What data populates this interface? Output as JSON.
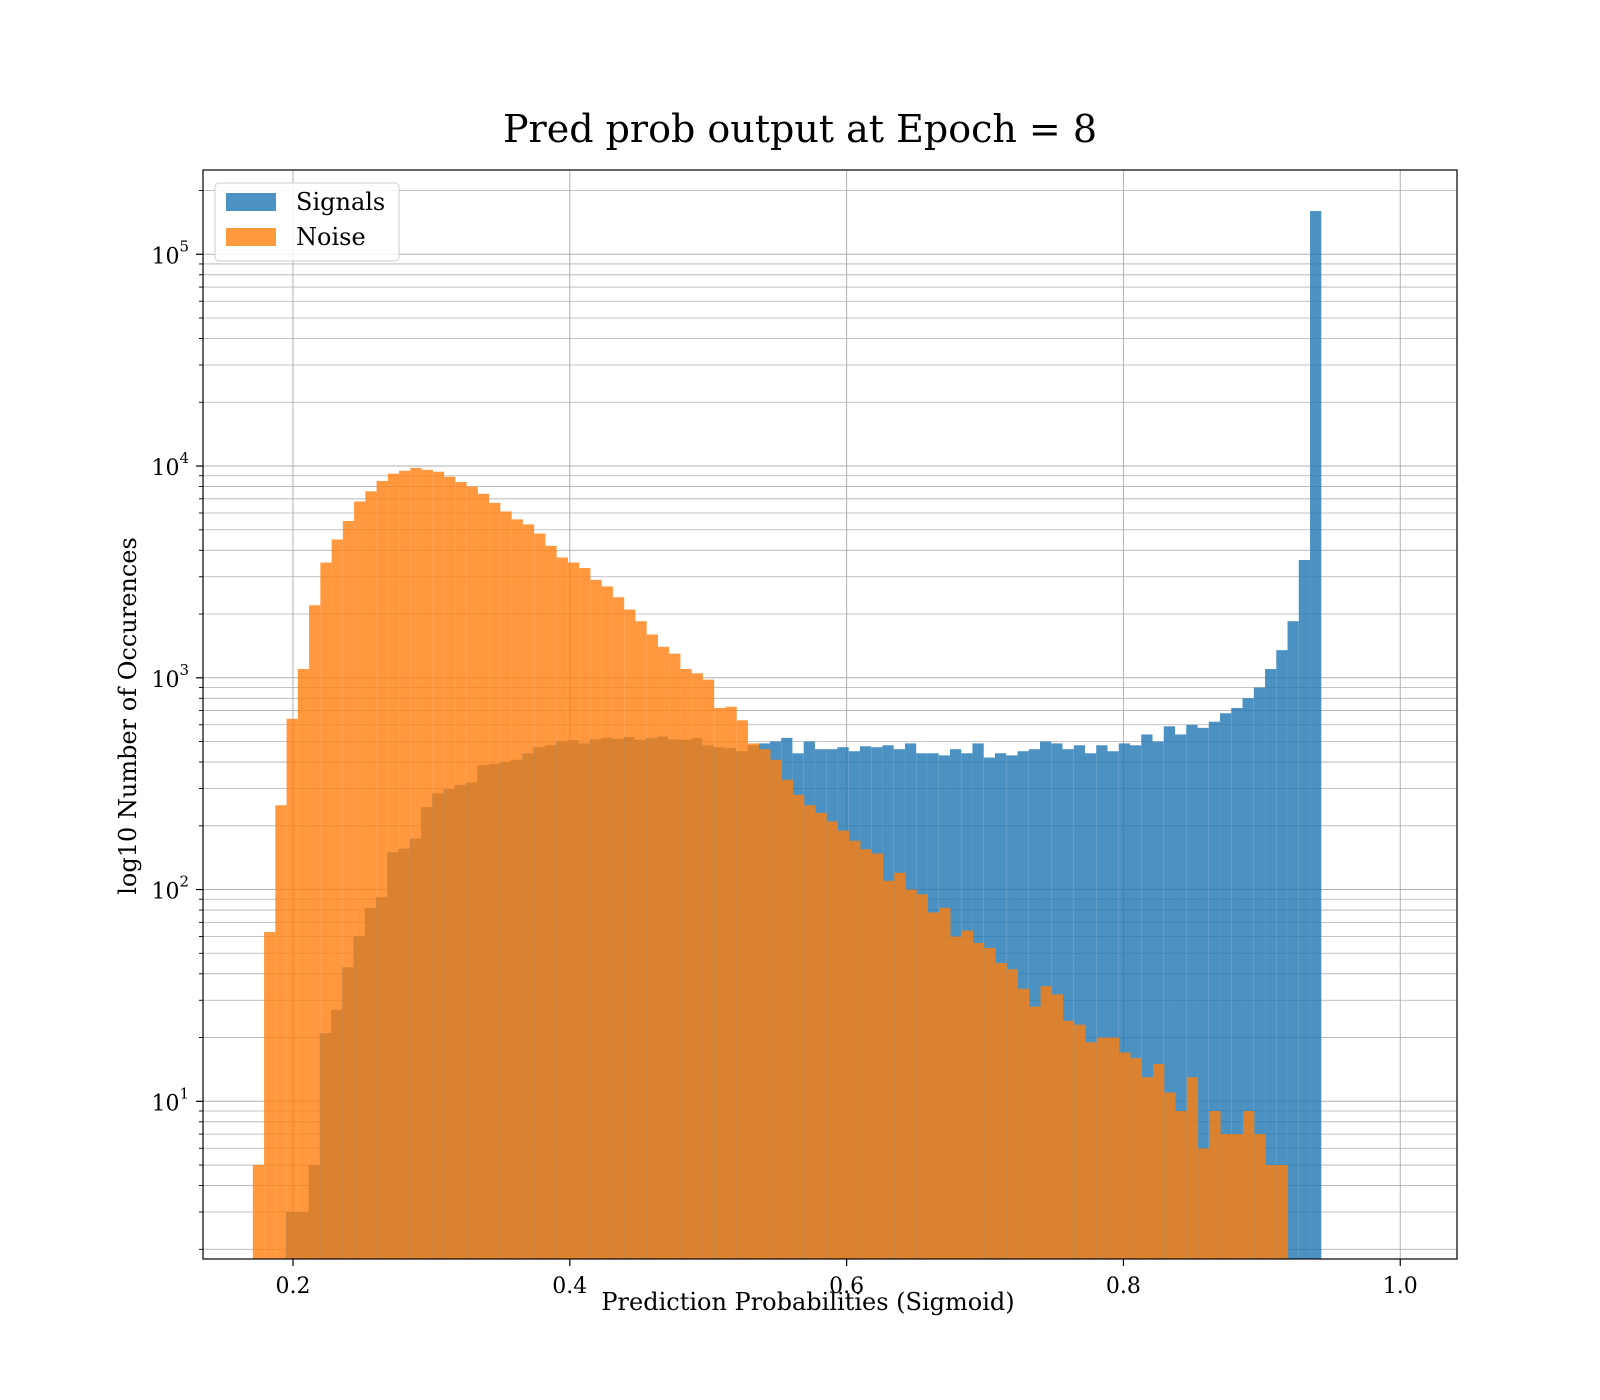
{
  "chart_data": {
    "type": "bar",
    "title": "Pred prob output at Epoch = 8",
    "xlabel": "Prediction Probabilities (Sigmoid)",
    "ylabel": "log10 Number of Occurences",
    "xlim": [
      0.135,
      1.041
    ],
    "ylim": [
      1.8,
      250000
    ],
    "yscale": "log",
    "grid": true,
    "legend_position": "top-left",
    "x_ticks": [
      "0.2",
      "0.4",
      "0.6",
      "0.8",
      "1.0"
    ],
    "y_ticks": [
      {
        "base": "10",
        "exp": "1",
        "value": 10
      },
      {
        "base": "10",
        "exp": "2",
        "value": 100
      },
      {
        "base": "10",
        "exp": "3",
        "value": 1000
      },
      {
        "base": "10",
        "exp": "4",
        "value": 10000
      },
      {
        "base": "10",
        "exp": "5",
        "value": 100000
      }
    ],
    "series": [
      {
        "name": "Signals",
        "color": "#1f77b4",
        "x_start": 0.195,
        "bin_width": 0.00813,
        "values": [
          3,
          3,
          5,
          21,
          27,
          43,
          60,
          82,
          92,
          150,
          156,
          174,
          245,
          285,
          298,
          312,
          320,
          387,
          392,
          400,
          410,
          440,
          470,
          480,
          500,
          507,
          490,
          512,
          520,
          515,
          525,
          510,
          520,
          528,
          512,
          510,
          520,
          480,
          470,
          465,
          450,
          480,
          490,
          500,
          520,
          440,
          500,
          460,
          460,
          470,
          450,
          475,
          470,
          480,
          460,
          490,
          440,
          440,
          430,
          460,
          440,
          490,
          420,
          440,
          430,
          450,
          460,
          500,
          490,
          460,
          480,
          440,
          480,
          450,
          490,
          480,
          540,
          500,
          590,
          540,
          600,
          580,
          620,
          680,
          720,
          800,
          900,
          1100,
          1350,
          1850,
          3600,
          160000
        ]
      },
      {
        "name": "Noise",
        "color": "#ff7f0e",
        "x_start": 0.171,
        "bin_width": 0.00813,
        "values": [
          5,
          63,
          250,
          640,
          1100,
          2200,
          3500,
          4500,
          5500,
          6800,
          7600,
          8500,
          9200,
          9500,
          9800,
          9600,
          9400,
          8900,
          8400,
          8000,
          7400,
          6700,
          6100,
          5600,
          5300,
          4800,
          4200,
          3700,
          3500,
          3300,
          2900,
          2700,
          2400,
          2100,
          1850,
          1600,
          1400,
          1300,
          1100,
          1050,
          980,
          720,
          730,
          630,
          490,
          460,
          410,
          330,
          280,
          250,
          230,
          210,
          190,
          170,
          155,
          148,
          110,
          120,
          100,
          95,
          78,
          82,
          60,
          64,
          56,
          53,
          45,
          42,
          34,
          28,
          35,
          32,
          24,
          23,
          19,
          20,
          20,
          17,
          16,
          13,
          15,
          11,
          9,
          13,
          6,
          9,
          7,
          7,
          9,
          7,
          5,
          5
        ]
      }
    ]
  }
}
